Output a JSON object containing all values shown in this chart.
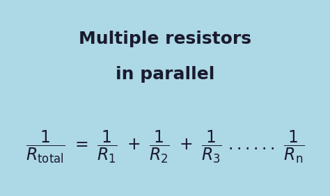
{
  "title_line1": "Multiple resistors",
  "title_line2": "in parallel",
  "background_color": "#add8e6",
  "text_color": "#1a1a2e",
  "title_fontsize": 18,
  "formula_fontsize": 17,
  "border_color": "#7ab0c8",
  "figsize": [
    4.74,
    2.82
  ],
  "dpi": 100
}
